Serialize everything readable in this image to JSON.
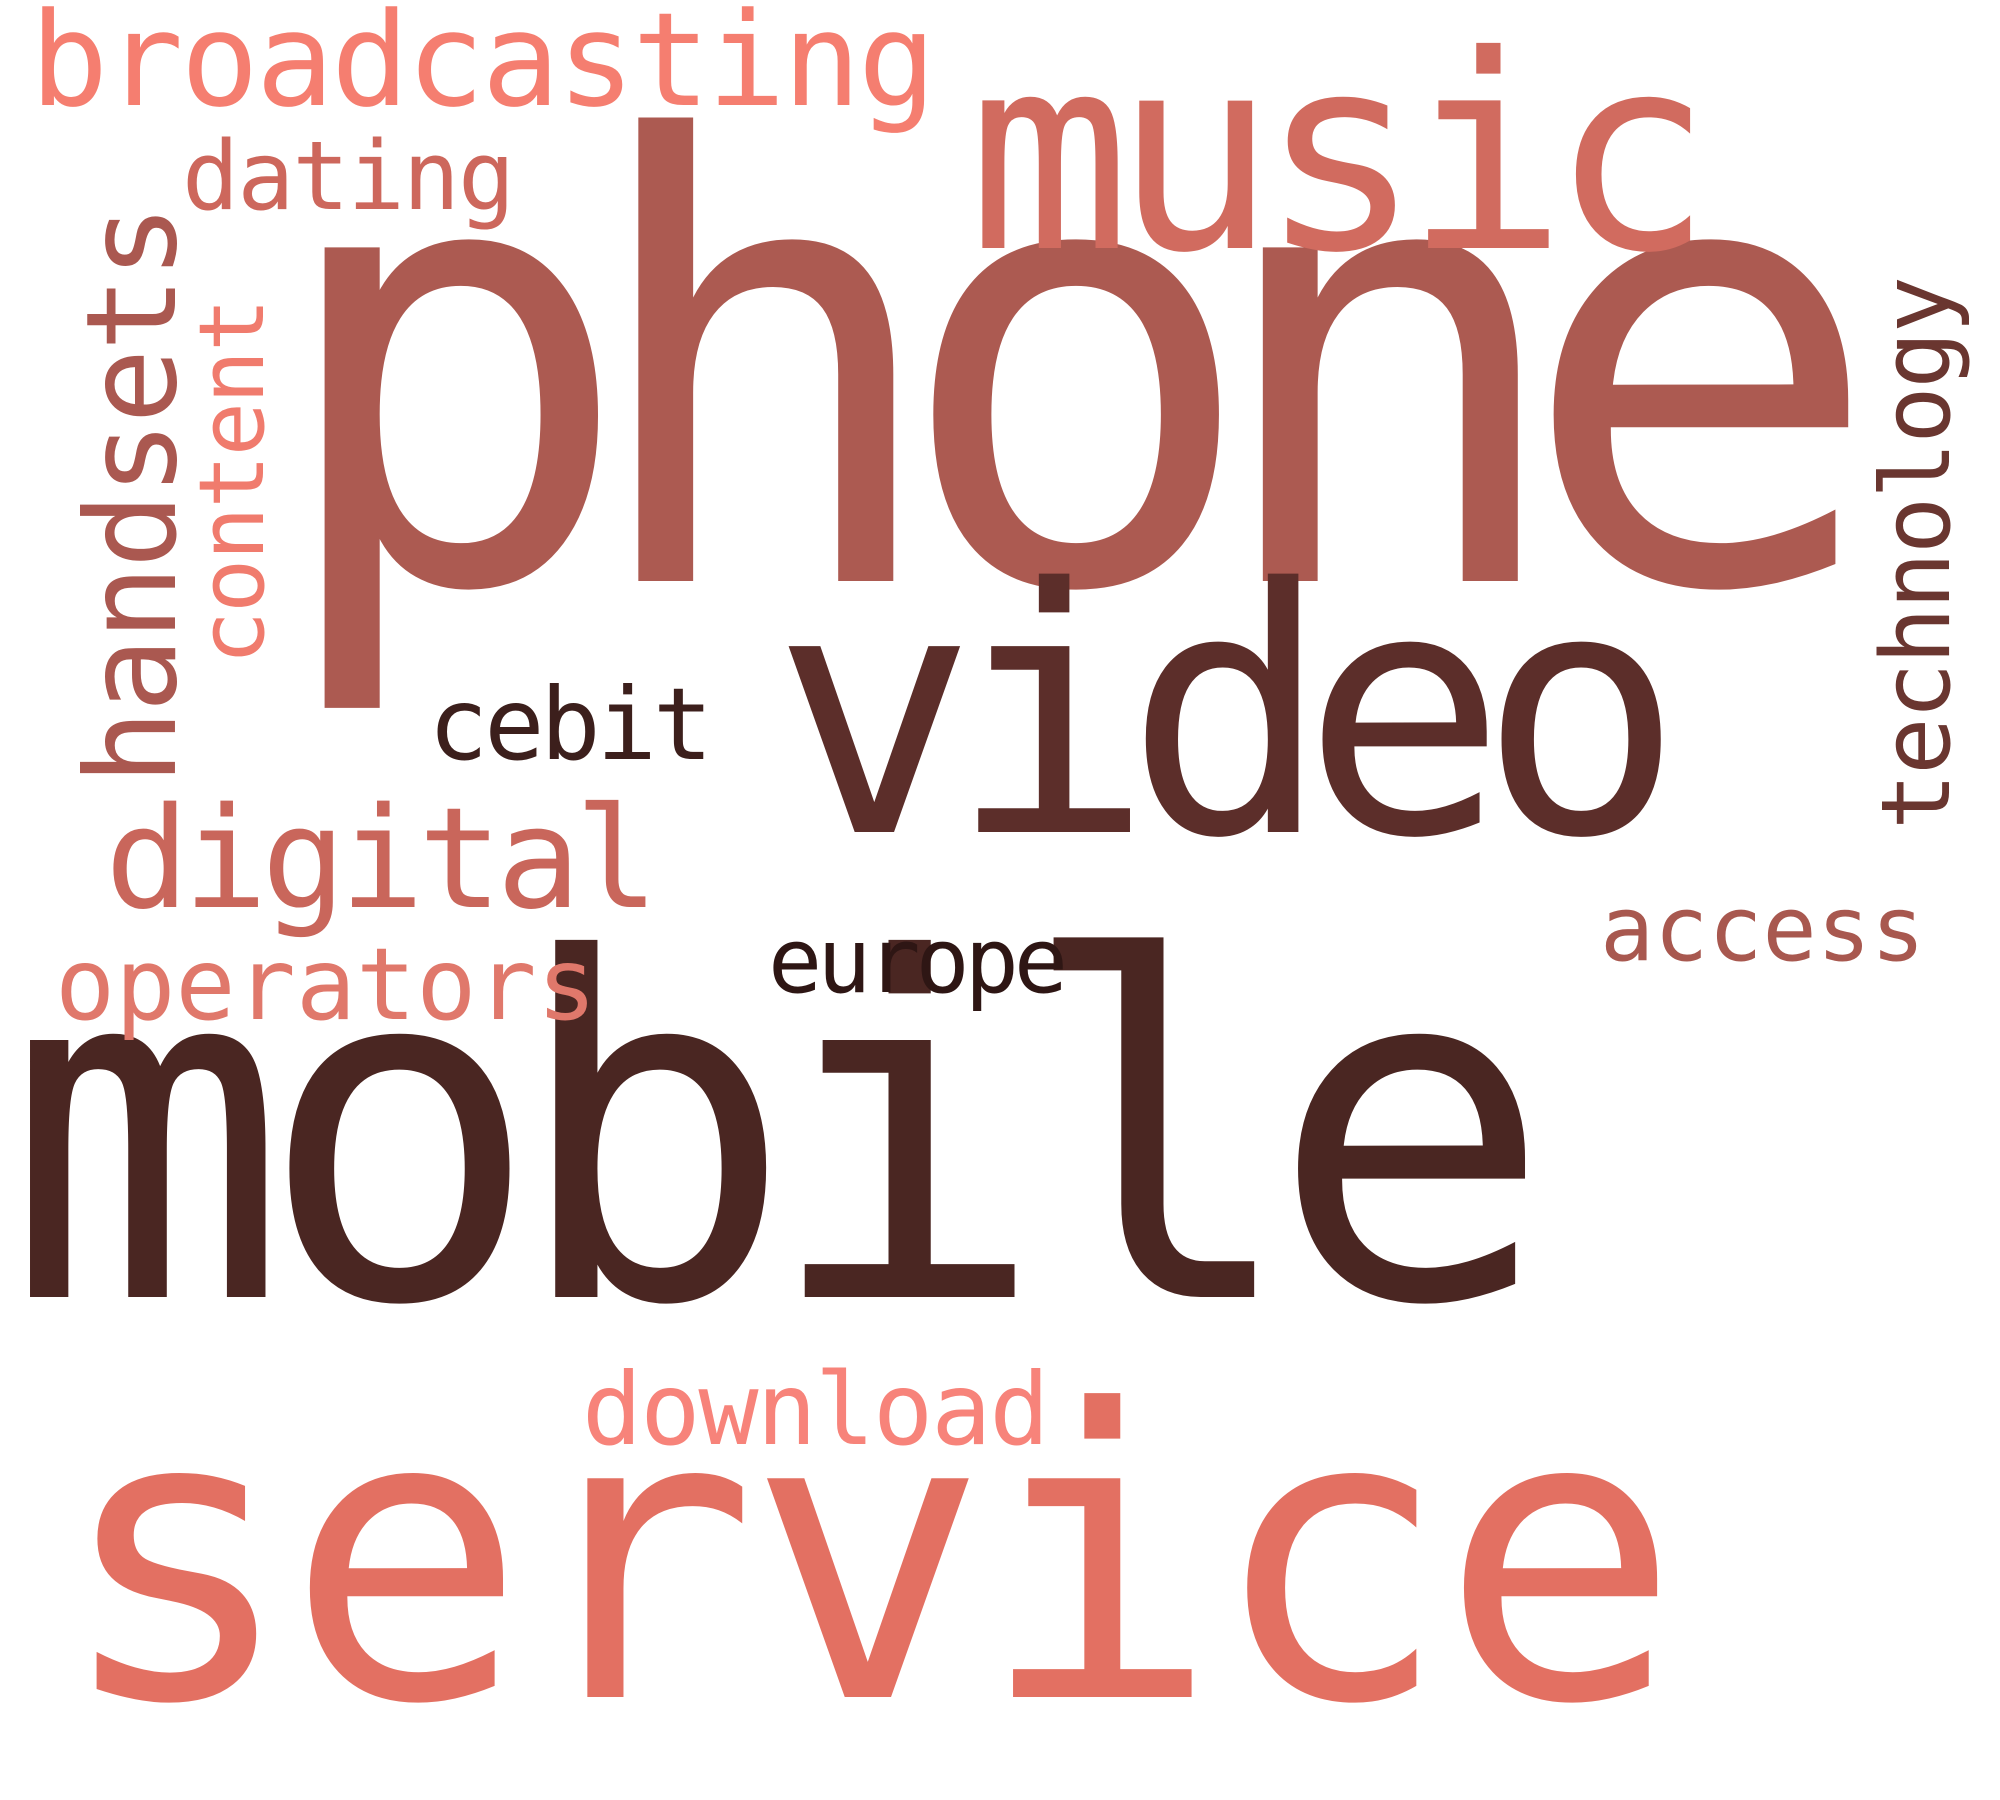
{
  "words": {
    "mobile": {
      "text": "mobile",
      "color": "#4a2622"
    },
    "phone": {
      "text": "phone",
      "color": "#ac5a51"
    },
    "service": {
      "text": "service",
      "color": "#e37062"
    },
    "video": {
      "text": "video",
      "color": "#5c2e2a"
    },
    "music": {
      "text": "music",
      "color": "#d16b5f"
    },
    "broadcasting": {
      "text": "broadcasting",
      "color": "#f57e70"
    },
    "dating": {
      "text": "dating",
      "color": "#cd675c"
    },
    "handsets": {
      "text": "handsets",
      "color": "#aa5850"
    },
    "content": {
      "text": "content",
      "color": "#f07b6d"
    },
    "technology": {
      "text": "technology",
      "color": "#6a3630"
    },
    "cebit": {
      "text": "cebit",
      "color": "#3c1f1c"
    },
    "digital": {
      "text": "digital",
      "color": "#c9665b"
    },
    "operators": {
      "text": "operators",
      "color": "#e0786b"
    },
    "access": {
      "text": "access",
      "color": "#a8584f"
    },
    "europe": {
      "text": "europe",
      "color": "#2e1614"
    },
    "download": {
      "text": "download",
      "color": "#f7837a"
    }
  }
}
